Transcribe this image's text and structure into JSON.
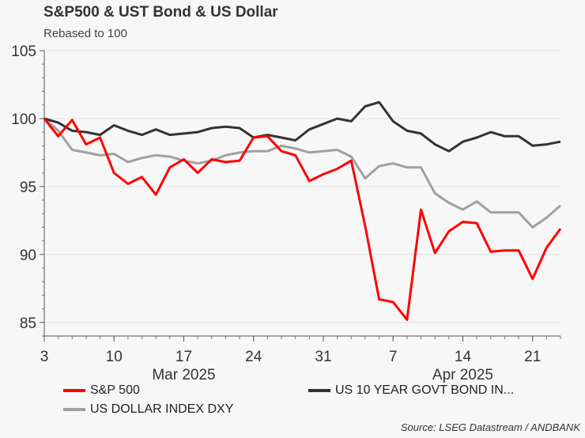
{
  "chart_data": {
    "type": "line",
    "title": "S&P500 & UST Bond & US Dollar",
    "subtitle": "Rebased to 100",
    "ylim": [
      84,
      105
    ],
    "yticks": [
      85,
      90,
      95,
      100,
      105
    ],
    "xtick_labels": [
      "3",
      "10",
      "17",
      "24",
      "31",
      "7",
      "14",
      "21"
    ],
    "xtick_dates": [
      "2025-03-03",
      "2025-03-10",
      "2025-03-17",
      "2025-03-24",
      "2025-03-31",
      "2025-04-07",
      "2025-04-14",
      "2025-04-21"
    ],
    "month_labels": [
      {
        "label": "Mar 2025",
        "date": "2025-03-17"
      },
      {
        "label": "Apr 2025",
        "date": "2025-04-14"
      }
    ],
    "grid": "horizontal dotted",
    "legend_placement": "bottom",
    "x": [
      "2025-03-03",
      "2025-03-04",
      "2025-03-05",
      "2025-03-06",
      "2025-03-07",
      "2025-03-10",
      "2025-03-11",
      "2025-03-12",
      "2025-03-13",
      "2025-03-14",
      "2025-03-17",
      "2025-03-18",
      "2025-03-19",
      "2025-03-20",
      "2025-03-21",
      "2025-03-24",
      "2025-03-25",
      "2025-03-26",
      "2025-03-27",
      "2025-03-28",
      "2025-03-31",
      "2025-04-01",
      "2025-04-02",
      "2025-04-03",
      "2025-04-04",
      "2025-04-07",
      "2025-04-08",
      "2025-04-09",
      "2025-04-10",
      "2025-04-11",
      "2025-04-14",
      "2025-04-15",
      "2025-04-16",
      "2025-04-17",
      "2025-04-18",
      "2025-04-21",
      "2025-04-22",
      "2025-04-23"
    ],
    "series": [
      {
        "name": "S&P 500",
        "color": "#ff0000",
        "values": [
          100,
          98.7,
          99.9,
          98.1,
          98.6,
          96.0,
          95.2,
          95.7,
          94.4,
          96.4,
          97.0,
          96.0,
          97.0,
          96.8,
          96.9,
          98.6,
          98.7,
          97.6,
          97.3,
          95.4,
          95.9,
          96.3,
          96.9,
          92.1,
          86.7,
          86.5,
          85.2,
          93.3,
          90.1,
          91.7,
          92.4,
          92.3,
          90.2,
          90.3,
          90.3,
          88.2,
          90.5,
          91.9
        ]
      },
      {
        "name": "US 10 YEAR GOVT BOND IN...",
        "color": "#333333",
        "values": [
          100,
          99.7,
          99.1,
          99.0,
          98.8,
          99.5,
          99.1,
          98.8,
          99.2,
          98.8,
          98.9,
          99.0,
          99.3,
          99.4,
          99.3,
          98.6,
          98.8,
          98.6,
          98.4,
          99.2,
          99.6,
          100.0,
          99.8,
          100.9,
          101.2,
          99.8,
          99.1,
          98.9,
          98.1,
          97.6,
          98.3,
          98.6,
          99.0,
          98.7,
          98.7,
          98.0,
          98.1,
          98.3
        ]
      },
      {
        "name": "US DOLLAR INDEX DXY",
        "color": "#a0a0a0",
        "values": [
          100,
          99.1,
          97.7,
          97.5,
          97.3,
          97.4,
          96.8,
          97.1,
          97.3,
          97.2,
          96.9,
          96.7,
          96.9,
          97.3,
          97.5,
          97.6,
          97.6,
          98.0,
          97.8,
          97.5,
          97.6,
          97.7,
          97.2,
          95.6,
          96.5,
          96.7,
          96.4,
          96.4,
          94.5,
          93.8,
          93.3,
          93.9,
          93.1,
          93.1,
          93.1,
          92.0,
          92.7,
          93.6
        ]
      }
    ]
  },
  "source": "Source: LSEG Datastream / ANDBANK"
}
